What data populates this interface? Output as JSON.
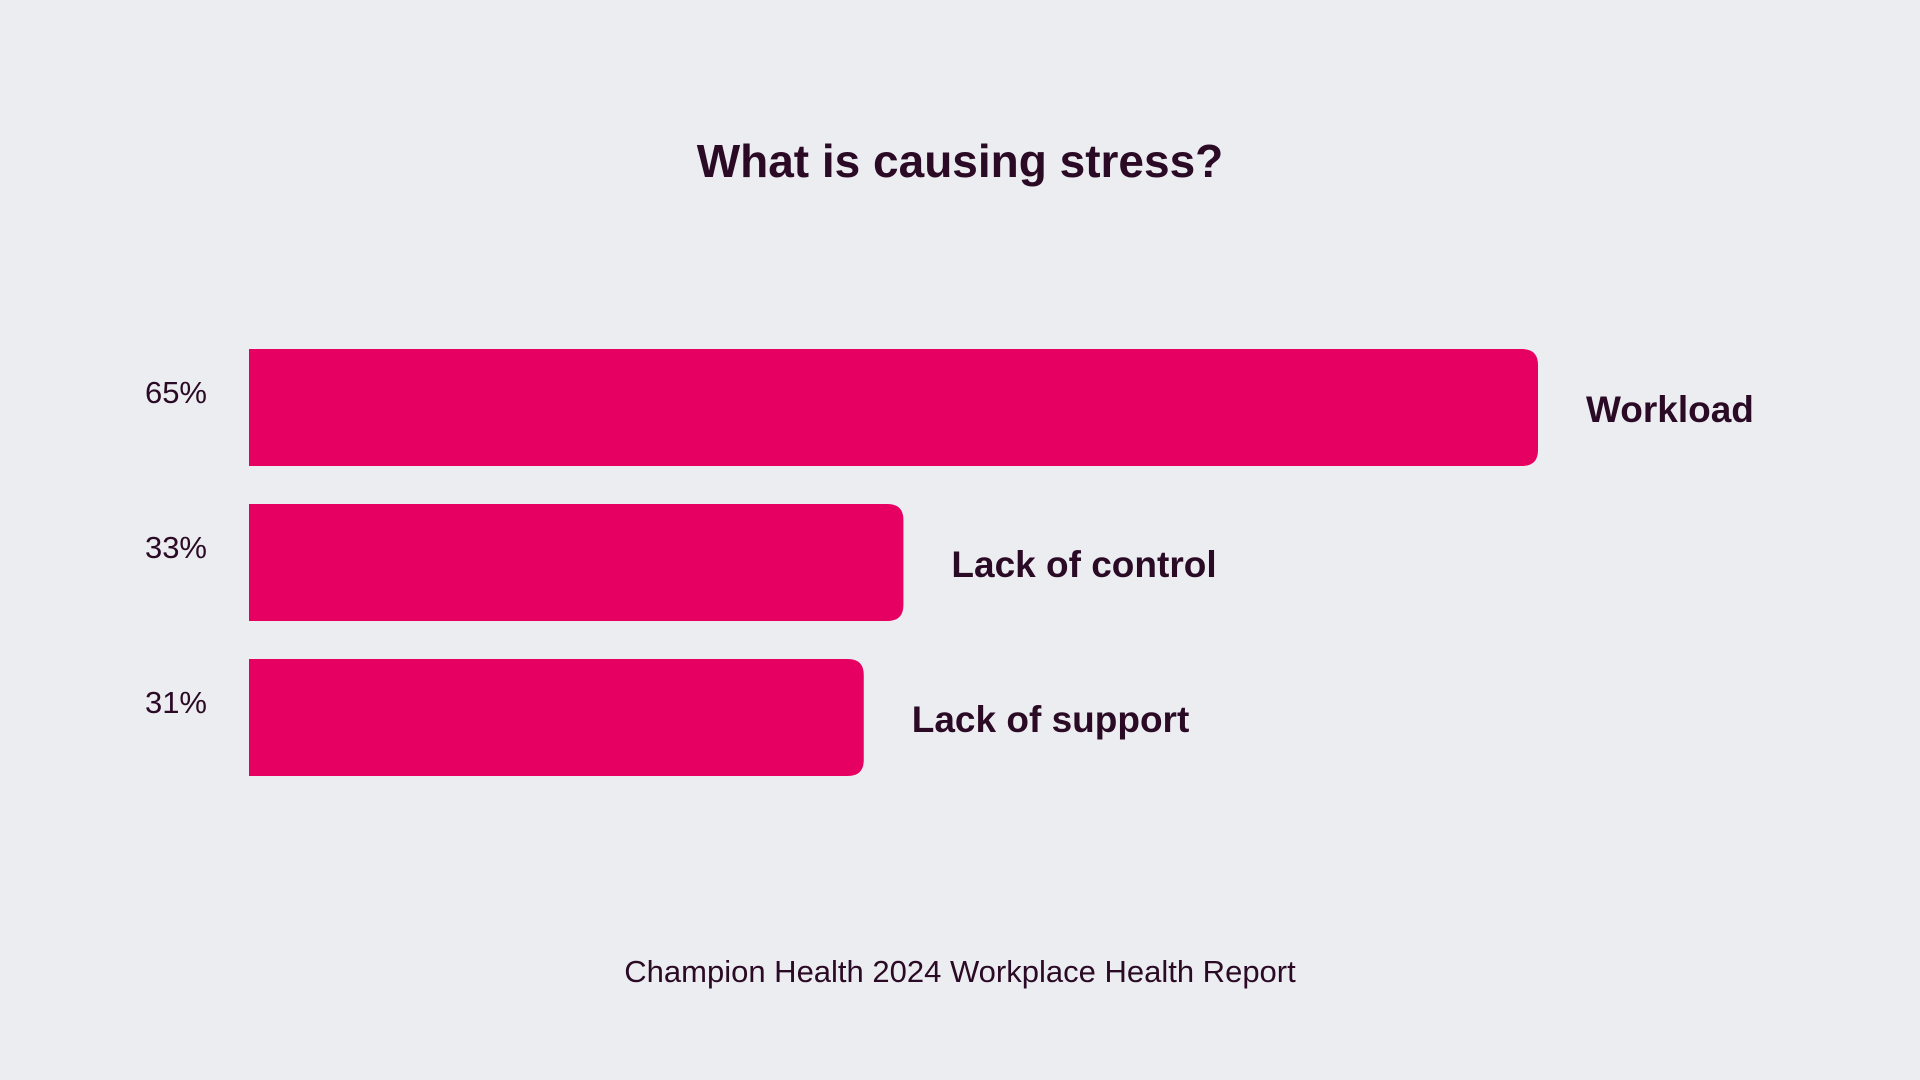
{
  "chart_data": {
    "type": "bar",
    "orientation": "horizontal",
    "title": "What is causing stress?",
    "categories": [
      "Workload",
      "Lack of control",
      "Lack of support"
    ],
    "values": [
      65,
      33,
      31
    ],
    "value_labels": [
      "65%",
      "33%",
      "31%"
    ],
    "unit": "%",
    "xlim": [
      0,
      65
    ],
    "grid": false,
    "legend": "none",
    "source": "Champion Health 2024 Workplace Health Report"
  },
  "colors": {
    "background": "#ecedf1",
    "bar": "#e60062",
    "text": "#2a0a25"
  }
}
